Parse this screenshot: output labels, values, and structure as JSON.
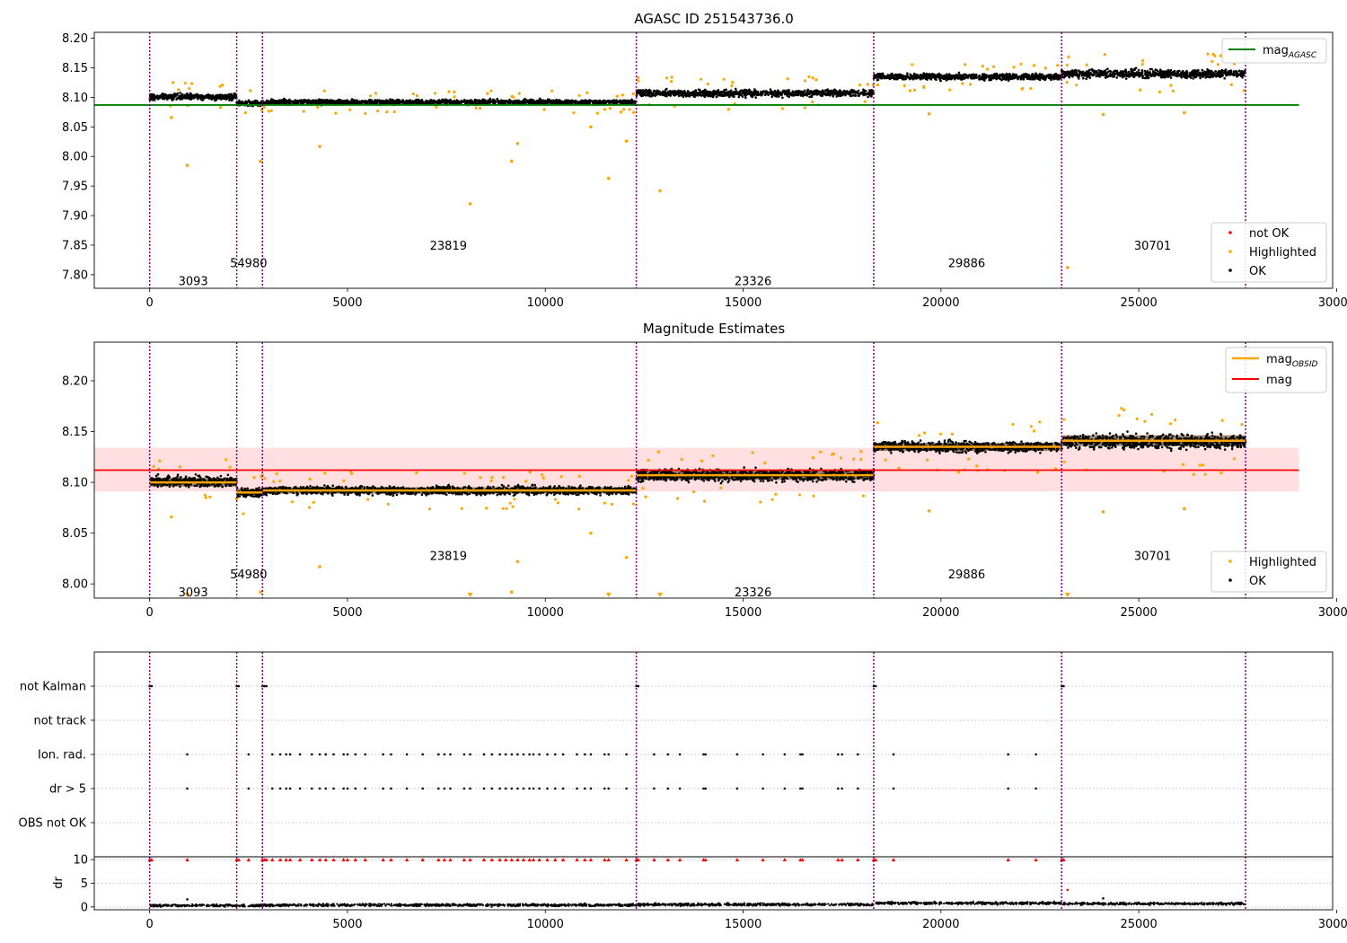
{
  "chart_data": [
    {
      "type": "scatter",
      "title": "AGASC ID 251543736.0",
      "xlim": [
        -1400,
        29900
      ],
      "ylim": [
        7.777,
        8.21
      ],
      "x_ticks": [
        0,
        5000,
        10000,
        15000,
        20000,
        25000,
        30000
      ],
      "y_ticks": [
        7.8,
        7.85,
        7.9,
        7.95,
        8.0,
        8.05,
        8.1,
        8.15,
        8.2
      ],
      "obsid_boundaries": [
        0,
        2200,
        2850,
        12300,
        18300,
        23050,
        27700
      ],
      "obsid_labels": [
        {
          "label": "3093",
          "x": 1100,
          "y": 7.79
        },
        {
          "label": "54980",
          "x": 2500,
          "y": 7.82
        },
        {
          "label": "23819",
          "x": 7550,
          "y": 7.85
        },
        {
          "label": "23326",
          "x": 15250,
          "y": 7.79
        },
        {
          "label": "29886",
          "x": 20650,
          "y": 7.82
        },
        {
          "label": "30701",
          "x": 25350,
          "y": 7.85
        }
      ],
      "reference_line": {
        "name": "mag_AGASC",
        "y": 8.087,
        "x_range": [
          -1400,
          29050
        ],
        "color": "#008000"
      },
      "segments": [
        {
          "x0": 0,
          "x1": 2200,
          "center": 8.101,
          "spread": 0.009
        },
        {
          "x0": 2200,
          "x1": 2850,
          "center": 8.09,
          "spread": 0.008
        },
        {
          "x0": 2850,
          "x1": 12300,
          "center": 8.092,
          "spread": 0.007
        },
        {
          "x0": 12300,
          "x1": 18300,
          "center": 8.107,
          "spread": 0.01
        },
        {
          "x0": 18300,
          "x1": 23050,
          "center": 8.135,
          "spread": 0.009
        },
        {
          "x0": 23050,
          "x1": 27700,
          "center": 8.14,
          "spread": 0.012
        }
      ],
      "highlighted_outliers": [
        {
          "x": 950,
          "y": 7.985
        },
        {
          "x": 2800,
          "y": 7.992
        },
        {
          "x": 4300,
          "y": 8.017
        },
        {
          "x": 8100,
          "y": 7.92
        },
        {
          "x": 9150,
          "y": 7.992
        },
        {
          "x": 9300,
          "y": 8.022
        },
        {
          "x": 11600,
          "y": 7.963
        },
        {
          "x": 12050,
          "y": 8.026
        },
        {
          "x": 12900,
          "y": 7.942
        },
        {
          "x": 23200,
          "y": 7.812
        },
        {
          "x": 24100,
          "y": 8.071
        },
        {
          "x": 19700,
          "y": 8.072
        },
        {
          "x": 550,
          "y": 8.066
        },
        {
          "x": 11150,
          "y": 8.05
        },
        {
          "x": 26150,
          "y": 8.074
        }
      ],
      "legend": [
        {
          "label": "mag",
          "sub": "AGASC",
          "kind": "line",
          "color": "#008000",
          "position": "upper right"
        },
        {
          "label": "not OK",
          "kind": "point",
          "color": "#ff0000",
          "position": "lower right"
        },
        {
          "label": "Highlighted",
          "kind": "point",
          "color": "#ffa500",
          "position": "lower right"
        },
        {
          "label": "OK",
          "kind": "point",
          "color": "#000000",
          "position": "lower right"
        }
      ]
    },
    {
      "type": "scatter",
      "title": "Magnitude Estimates",
      "xlim": [
        -1400,
        29900
      ],
      "ylim": [
        7.986,
        8.238
      ],
      "x_ticks": [
        0,
        5000,
        10000,
        15000,
        20000,
        25000,
        30000
      ],
      "y_ticks": [
        8.0,
        8.05,
        8.1,
        8.15,
        8.2
      ],
      "mag_line": {
        "name": "mag",
        "y": 8.112,
        "band": [
          8.091,
          8.134
        ],
        "x_range": [
          -1400,
          29050
        ],
        "color": "#ff0000"
      },
      "obsid_mag": [
        {
          "x0": 0,
          "x1": 2200,
          "y": 8.1
        },
        {
          "x0": 2200,
          "x1": 2850,
          "y": 8.09
        },
        {
          "x0": 2850,
          "x1": 12300,
          "y": 8.092
        },
        {
          "x0": 12300,
          "x1": 18300,
          "y": 8.107
        },
        {
          "x0": 18300,
          "x1": 23050,
          "y": 8.135
        },
        {
          "x0": 23050,
          "x1": 27700,
          "y": 8.141
        }
      ],
      "obsid_labels": [
        {
          "label": "3093",
          "x": 1100,
          "y": 7.992
        },
        {
          "label": "54980",
          "x": 2500,
          "y": 8.01
        },
        {
          "label": "23819",
          "x": 7550,
          "y": 8.028
        },
        {
          "label": "23326",
          "x": 15250,
          "y": 7.992
        },
        {
          "label": "29886",
          "x": 20650,
          "y": 8.01
        },
        {
          "label": "30701",
          "x": 25350,
          "y": 8.028
        }
      ],
      "clipped_markers_x": [
        950,
        8100,
        11600,
        12900,
        23200
      ],
      "legend": [
        {
          "label": "mag",
          "sub": "OBSID",
          "kind": "line",
          "color": "#ffa500",
          "position": "upper right"
        },
        {
          "label": "mag",
          "kind": "line",
          "color": "#ff0000",
          "position": "upper right"
        },
        {
          "label": "Highlighted",
          "kind": "point",
          "color": "#ffa500",
          "position": "lower right"
        },
        {
          "label": "OK",
          "kind": "point",
          "color": "#000000",
          "position": "lower right"
        }
      ]
    },
    {
      "type": "scatter",
      "title": "",
      "xlim": [
        -1400,
        29900
      ],
      "x_ticks": [
        0,
        5000,
        10000,
        15000,
        20000,
        25000,
        30000
      ],
      "flag_categories": [
        "not Kalman",
        "not track",
        "Ion. rad.",
        "dr > 5",
        "OBS not OK"
      ],
      "flags": {
        "not Kalman": [
          0,
          50,
          2200,
          2250,
          2850,
          2900,
          2950,
          12300,
          12350,
          18300,
          18350,
          23050,
          23100
        ],
        "not track": [],
        "Ion. rad.": [
          950,
          2500,
          3100,
          3300,
          3450,
          3550,
          3800,
          4100,
          4300,
          4450,
          4650,
          4900,
          5000,
          5200,
          5450,
          5900,
          6100,
          6500,
          6900,
          7300,
          7450,
          7600,
          7950,
          8100,
          8450,
          8650,
          8850,
          9000,
          9150,
          9300,
          9450,
          9600,
          9700,
          9850,
          10050,
          10250,
          10450,
          10800,
          11000,
          11150,
          11500,
          11600,
          12050,
          12750,
          13100,
          13400,
          14000,
          14050,
          14850,
          15500,
          16050,
          16450,
          16500,
          17400,
          17500,
          17900,
          18800,
          21700,
          22400
        ],
        "dr > 5": [
          950,
          2500,
          3100,
          3300,
          3450,
          3550,
          3800,
          4100,
          4300,
          4450,
          4650,
          4900,
          5000,
          5200,
          5450,
          5900,
          6100,
          6500,
          6900,
          7300,
          7450,
          7600,
          7950,
          8100,
          8450,
          8650,
          8850,
          9000,
          9150,
          9300,
          9450,
          9600,
          9700,
          9850,
          10050,
          10250,
          10450,
          10800,
          11000,
          11150,
          11500,
          11600,
          12050,
          12750,
          13100,
          13400,
          14000,
          14050,
          14850,
          15500,
          16050,
          16450,
          16500,
          17400,
          17500,
          17900,
          18800,
          21700,
          22400
        ],
        "OBS not OK": []
      }
    },
    {
      "type": "scatter",
      "title": "",
      "ylabel": "dr",
      "xlim": [
        -1400,
        29900
      ],
      "ylim": [
        -0.6,
        10.6
      ],
      "x_ticks": [
        0,
        5000,
        10000,
        15000,
        20000,
        25000,
        30000
      ],
      "y_ticks": [
        0,
        5,
        10
      ],
      "clipped_at": 10,
      "baseline_segments": [
        {
          "x0": 0,
          "x1": 2850,
          "y": 0.3
        },
        {
          "x0": 2850,
          "x1": 12300,
          "y": 0.4
        },
        {
          "x0": 12300,
          "x1": 18300,
          "y": 0.5
        },
        {
          "x0": 18300,
          "x1": 23050,
          "y": 0.8
        },
        {
          "x0": 23050,
          "x1": 27700,
          "y": 0.7
        }
      ],
      "extra_points": [
        {
          "x": 950,
          "y": 1.6
        },
        {
          "x": 23200,
          "y": 3.6
        },
        {
          "x": 24100,
          "y": 1.8
        }
      ]
    }
  ]
}
